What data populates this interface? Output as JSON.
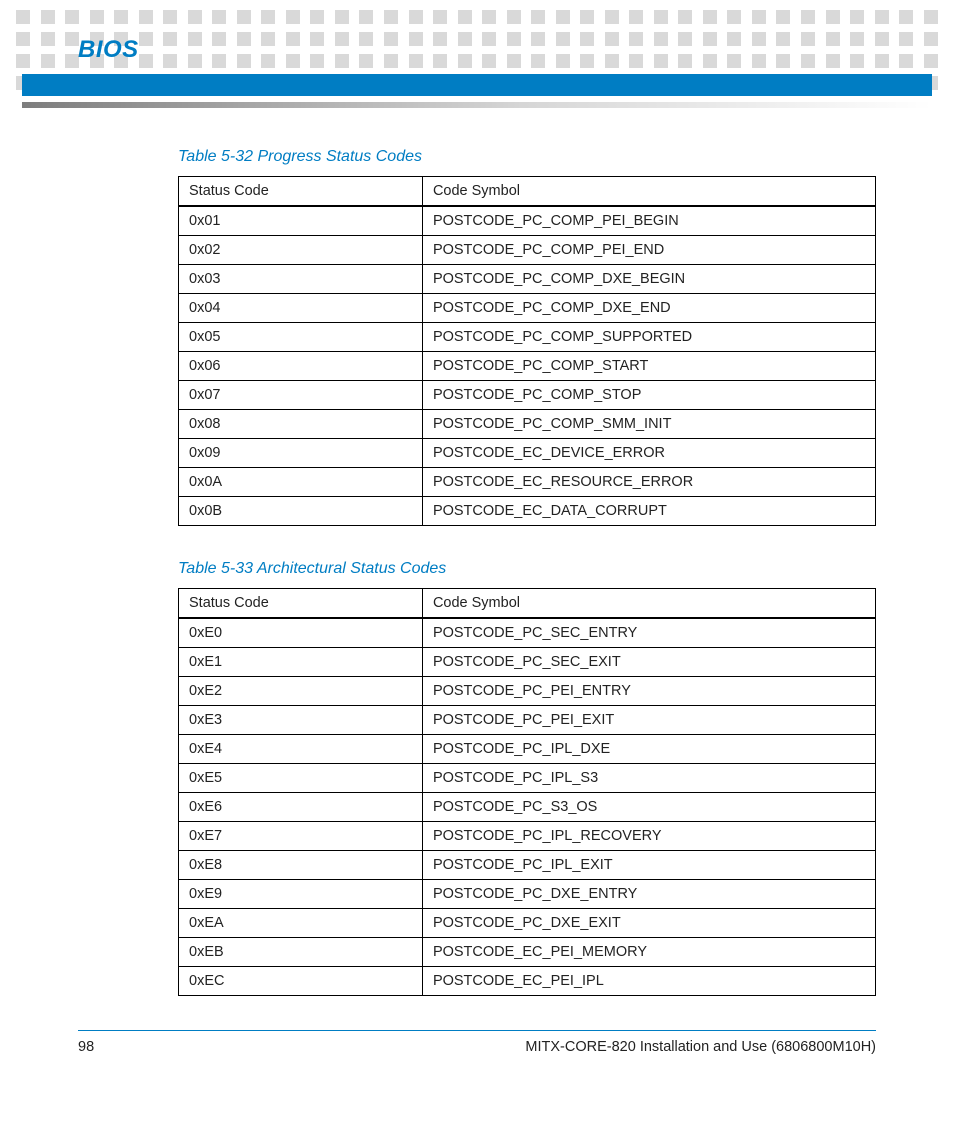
{
  "colors": {
    "accent": "#007dc3",
    "dot": "#d9d9d9",
    "grad_start": "#7d7d7d",
    "grad_mid": "#d6d6d6",
    "rule": "#000000"
  },
  "header": {
    "section": "BIOS"
  },
  "tables": [
    {
      "title": "Table 5-32 Progress Status Codes",
      "columns": [
        "Status Code",
        "Code Symbol"
      ],
      "rows": [
        [
          "0x01",
          "POSTCODE_PC_COMP_PEI_BEGIN"
        ],
        [
          "0x02",
          "POSTCODE_PC_COMP_PEI_END"
        ],
        [
          "0x03",
          "POSTCODE_PC_COMP_DXE_BEGIN"
        ],
        [
          "0x04",
          "POSTCODE_PC_COMP_DXE_END"
        ],
        [
          "0x05",
          "POSTCODE_PC_COMP_SUPPORTED"
        ],
        [
          "0x06",
          "POSTCODE_PC_COMP_START"
        ],
        [
          "0x07",
          "POSTCODE_PC_COMP_STOP"
        ],
        [
          "0x08",
          "POSTCODE_PC_COMP_SMM_INIT"
        ],
        [
          "0x09",
          "POSTCODE_EC_DEVICE_ERROR"
        ],
        [
          "0x0A",
          "POSTCODE_EC_RESOURCE_ERROR"
        ],
        [
          "0x0B",
          "POSTCODE_EC_DATA_CORRUPT"
        ]
      ]
    },
    {
      "title": "Table 5-33 Architectural Status Codes",
      "columns": [
        "Status Code",
        "Code Symbol"
      ],
      "rows": [
        [
          "0xE0",
          "POSTCODE_PC_SEC_ENTRY"
        ],
        [
          "0xE1",
          "POSTCODE_PC_SEC_EXIT"
        ],
        [
          "0xE2",
          "POSTCODE_PC_PEI_ENTRY"
        ],
        [
          "0xE3",
          "POSTCODE_PC_PEI_EXIT"
        ],
        [
          "0xE4",
          "POSTCODE_PC_IPL_DXE"
        ],
        [
          "0xE5",
          "POSTCODE_PC_IPL_S3"
        ],
        [
          "0xE6",
          "POSTCODE_PC_S3_OS"
        ],
        [
          "0xE7",
          "POSTCODE_PC_IPL_RECOVERY"
        ],
        [
          "0xE8",
          "POSTCODE_PC_IPL_EXIT"
        ],
        [
          "0xE9",
          "POSTCODE_PC_DXE_ENTRY"
        ],
        [
          "0xEA",
          "POSTCODE_PC_DXE_EXIT"
        ],
        [
          "0xEB",
          "POSTCODE_EC_PEI_MEMORY"
        ],
        [
          "0xEC",
          "POSTCODE_EC_PEI_IPL"
        ]
      ]
    }
  ],
  "footer": {
    "page_number": "98",
    "doc_title": "MITX-CORE-820 Installation and Use (6806800M10H)"
  },
  "decoration": {
    "dot_rows": 4,
    "dots_per_row": 38
  }
}
